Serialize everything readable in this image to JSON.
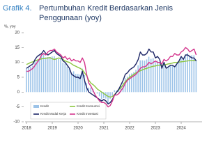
{
  "chart_data": {
    "type": "combo",
    "title_label": "Grafik 4.",
    "title": [
      "Pertumbuhan Kredit Berdasarkan Jenis",
      "Penggunaan (yoy)"
    ],
    "ylabel": "%, yoy",
    "categories": [
      "2018",
      null,
      null,
      null,
      null,
      null,
      null,
      null,
      null,
      null,
      null,
      null,
      "2019",
      null,
      null,
      null,
      null,
      null,
      null,
      null,
      null,
      null,
      null,
      null,
      "2020",
      null,
      null,
      null,
      null,
      null,
      null,
      null,
      null,
      null,
      null,
      null,
      "2021",
      null,
      null,
      null,
      null,
      null,
      null,
      null,
      null,
      null,
      null,
      null,
      "2022",
      null,
      null,
      null,
      null,
      null,
      null,
      null,
      null,
      null,
      null,
      null,
      "2023",
      null,
      null,
      null,
      null,
      null,
      null,
      null,
      null,
      null,
      null,
      null,
      "2024",
      null,
      null,
      null,
      null,
      null,
      null,
      null
    ],
    "ylim": [
      -10,
      20
    ],
    "yticks": [
      -10,
      -5,
      0,
      5,
      10,
      15,
      20
    ],
    "grid": false,
    "series": [
      {
        "name": "Kredit",
        "type": "bar",
        "color": "#9cc3e8",
        "values": [
          8,
          8.2,
          8.5,
          8.9,
          10.3,
          10.7,
          11.3,
          12.1,
          12.7,
          11.7,
          11.8,
          11.8,
          12,
          12.1,
          11.5,
          11.1,
          11.1,
          9.9,
          9.6,
          8.6,
          7.9,
          6.5,
          7,
          6.1,
          6.1,
          5.9,
          7.9,
          5.7,
          3,
          1.5,
          1.5,
          1,
          0.1,
          -0.5,
          -1.4,
          -2.4,
          -2,
          -2.2,
          -4,
          -2.3,
          -1.3,
          0.6,
          0.5,
          1.2,
          2.2,
          3.2,
          4.7,
          5.2,
          6,
          6.3,
          6.7,
          7.5,
          9,
          10.7,
          10.7,
          10.6,
          11,
          11.9,
          11.2,
          11.4,
          10.5,
          10.6,
          9.9,
          8.1,
          9.4,
          7.8,
          8.5,
          9,
          8.9,
          8.9,
          9.7,
          10.4,
          11.8,
          11.3,
          12.4,
          13.1,
          12.2,
          12.4,
          12.4,
          10.9
        ]
      },
      {
        "name": "Kredit Konsumsi",
        "type": "line",
        "color": "#8cc63f",
        "values": [
          9.3,
          9.6,
          10,
          10.2,
          10.5,
          10.8,
          11,
          11.2,
          11.3,
          11.4,
          11.5,
          11.6,
          11.2,
          11,
          11.2,
          11.5,
          11.3,
          11,
          10.5,
          10.2,
          10,
          9.5,
          9,
          8.7,
          8.3,
          8,
          7.5,
          6.5,
          5.5,
          4,
          3,
          2.5,
          1.8,
          1,
          0.5,
          0,
          -0.5,
          -1,
          -1.5,
          -1.7,
          -1.5,
          -0.8,
          0,
          0.8,
          1.5,
          2.5,
          3.5,
          4.3,
          5,
          5.5,
          6,
          6.5,
          6.8,
          7.2,
          7.5,
          7.8,
          8,
          8.3,
          8.5,
          8.7,
          8.8,
          9,
          9.1,
          9,
          9.2,
          9.3,
          9.5,
          9.6,
          9.8,
          10,
          10,
          10.1,
          10.2,
          10.3,
          10.4,
          10.5,
          10.6,
          10.6,
          10.7,
          10.6
        ]
      },
      {
        "name": "Kredit Modal Kerja",
        "type": "line",
        "color": "#1c2566",
        "values": [
          8,
          8.5,
          9,
          9.5,
          11,
          12,
          12.5,
          13,
          14,
          13,
          12.5,
          13,
          13.5,
          14,
          13,
          12.5,
          12,
          10.5,
          10,
          9,
          8,
          6,
          5.5,
          5,
          5,
          4.5,
          7,
          4,
          1.5,
          0,
          -0.5,
          -1,
          -1.5,
          -2,
          -2.5,
          -3,
          -2.5,
          -3,
          -4,
          -3.5,
          -2.5,
          -1,
          0,
          1,
          2.5,
          4,
          6,
          6.5,
          7.5,
          8,
          8.5,
          9.5,
          11,
          13.5,
          12.5,
          12.5,
          13,
          14.5,
          13.5,
          13.5,
          11.5,
          12,
          11,
          8,
          10,
          8,
          8.5,
          9,
          9,
          8.5,
          9.5,
          10.5,
          12,
          11,
          12.5,
          12.5,
          12,
          11.5,
          11.5,
          10.5
        ]
      },
      {
        "name": "Kredit Investasi",
        "type": "line",
        "color": "#d4358d",
        "values": [
          7,
          7,
          7.5,
          8,
          9,
          10,
          11,
          12.5,
          13,
          12.5,
          13.5,
          14,
          14,
          14.5,
          13.5,
          13,
          12.5,
          11.5,
          12,
          11,
          11.5,
          10.5,
          11,
          10.5,
          10.5,
          10,
          11.5,
          10,
          6,
          3,
          2,
          0.5,
          -1,
          -2,
          -3,
          -3.5,
          -3.5,
          -4,
          -5,
          -4.5,
          -3,
          -1,
          -1,
          -0.5,
          0.5,
          1.5,
          3,
          4,
          4.5,
          5,
          5.5,
          6,
          7,
          8,
          8.5,
          8.5,
          9,
          10,
          9.5,
          10,
          10.5,
          10,
          10,
          9.5,
          11,
          10.5,
          11,
          12,
          12,
          13,
          12.5,
          12.5,
          13.5,
          14,
          15,
          14.5,
          13.5,
          14,
          14.5,
          12.5
        ]
      }
    ]
  }
}
